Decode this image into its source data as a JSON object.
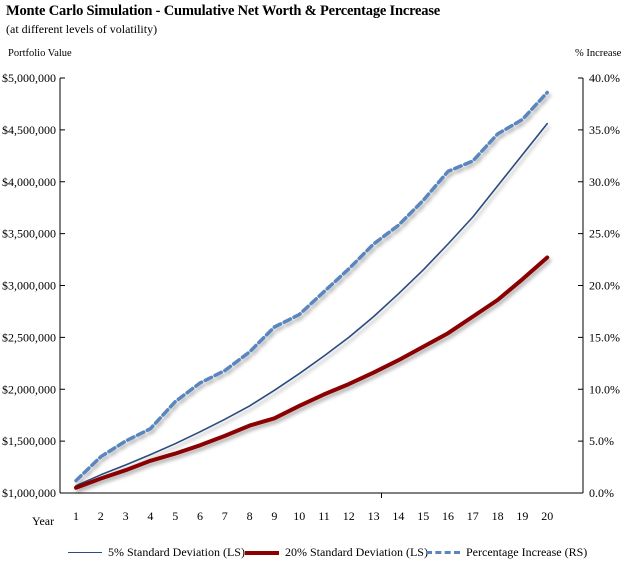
{
  "title": "Monte Carlo Simulation -  Cumulative Net Worth & Percentage Increase",
  "subtitle": "(at different levels of volatility)",
  "left_axis_title": "Portfolio Value",
  "right_axis_title": "% Increase",
  "x_axis_title": "Year",
  "colors": {
    "navy": "#2B4C7E",
    "darkred": "#8B0000",
    "dashed": "#5A86BD"
  },
  "chart_data": {
    "type": "line",
    "title": "Monte Carlo Simulation -  Cumulative Net Worth & Percentage Increase",
    "subtitle": "(at different levels of volatility)",
    "xlabel": "Year",
    "ylabel": "Portfolio Value",
    "y2label": "% Increase",
    "x": [
      1,
      2,
      3,
      4,
      5,
      6,
      7,
      8,
      9,
      10,
      11,
      12,
      13,
      14,
      15,
      16,
      17,
      18,
      19,
      20
    ],
    "ylim": [
      1000000,
      5000000
    ],
    "y2lim": [
      0,
      40
    ],
    "yticks": [
      "$1,000,000",
      "$1,500,000",
      "$2,000,000",
      "$2,500,000",
      "$3,000,000",
      "$3,500,000",
      "$4,000,000",
      "$4,500,000",
      "$5,000,000"
    ],
    "y2ticks": [
      "0.0%",
      "5.0%",
      "10.0%",
      "15.0%",
      "20.0%",
      "25.0%",
      "30.0%",
      "35.0%",
      "40.0%"
    ],
    "grid": false,
    "legend": "bottom",
    "series": [
      {
        "name": "5% Standard Deviation (LS)",
        "axis": "left",
        "style": "solid-thin",
        "color": "#2B4C7E",
        "values": [
          1070000,
          1175000,
          1270000,
          1370000,
          1475000,
          1590000,
          1710000,
          1840000,
          1990000,
          2150000,
          2320000,
          2500000,
          2700000,
          2920000,
          3150000,
          3400000,
          3660000,
          3960000,
          4260000,
          4560000
        ]
      },
      {
        "name": "20% Standard Deviation (LS)",
        "axis": "left",
        "style": "solid-thick",
        "color": "#8B0000",
        "values": [
          1050000,
          1140000,
          1220000,
          1310000,
          1380000,
          1460000,
          1550000,
          1650000,
          1720000,
          1840000,
          1950000,
          2050000,
          2160000,
          2280000,
          2410000,
          2540000,
          2700000,
          2860000,
          3060000,
          3270000
        ]
      },
      {
        "name": "Percentage Increase (RS)",
        "axis": "right",
        "style": "dashed",
        "color": "#5A86BD",
        "values": [
          1.2,
          3.5,
          5.0,
          6.2,
          8.8,
          10.6,
          11.8,
          13.6,
          16.0,
          17.2,
          19.4,
          21.6,
          24.0,
          25.8,
          28.2,
          31.0,
          32.0,
          34.6,
          36.0,
          38.6
        ]
      }
    ]
  }
}
